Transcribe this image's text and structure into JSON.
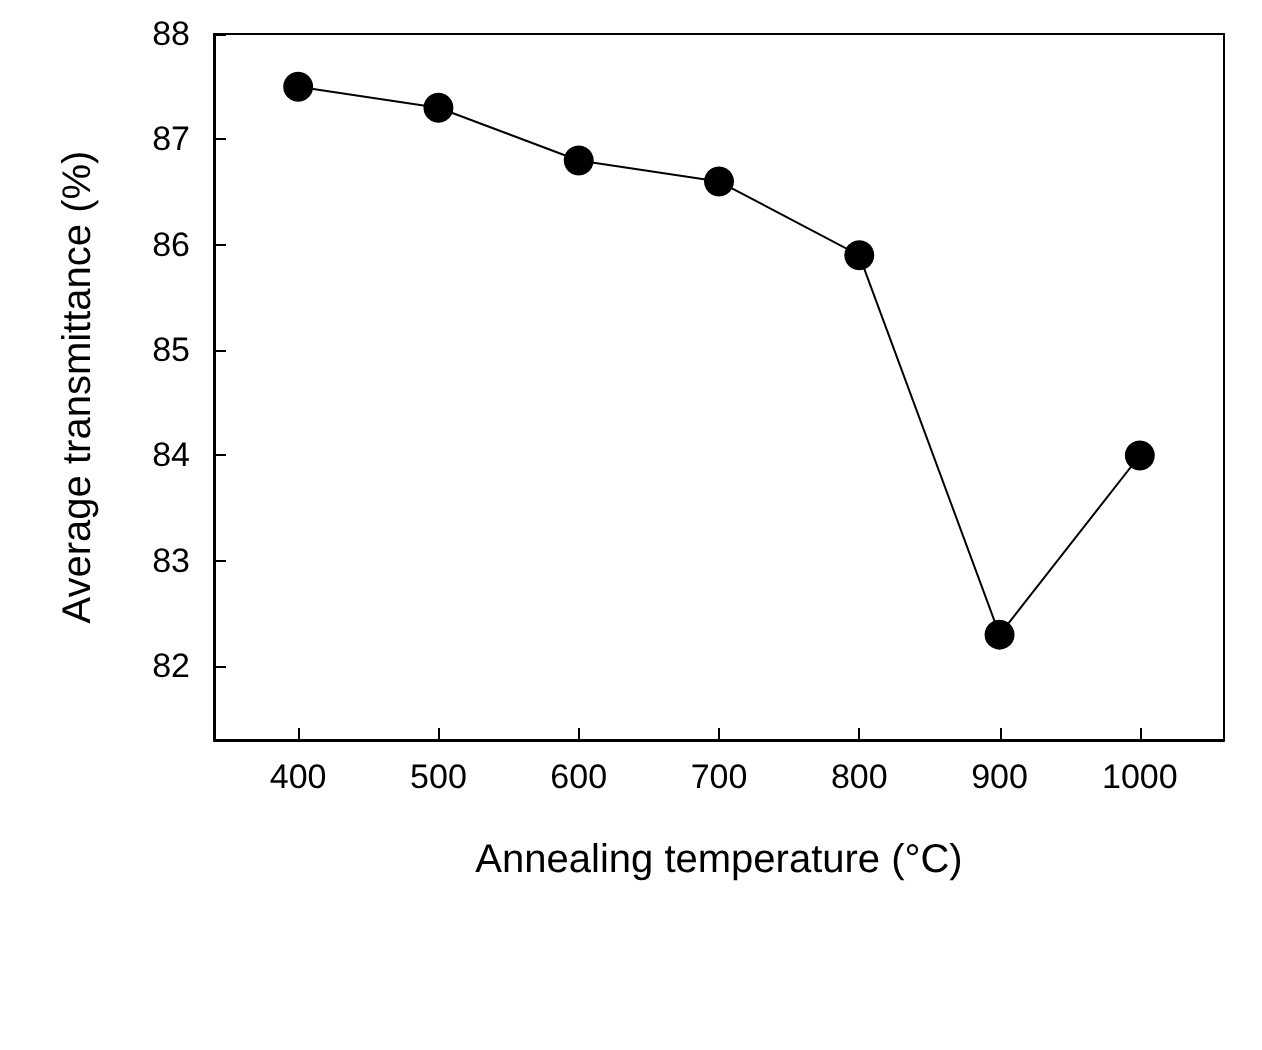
{
  "chart_data": {
    "type": "line",
    "xlabel": "Annealing temperature (°C)",
    "ylabel": "Average transmittance (%)",
    "x": [
      400,
      500,
      600,
      700,
      800,
      900,
      1000
    ],
    "series": [
      {
        "color": "#000000",
        "values": [
          87.5,
          87.3,
          86.8,
          86.6,
          85.9,
          82.3,
          84.0
        ]
      }
    ],
    "xlim": [
      340,
      1060
    ],
    "xticks": [
      400,
      500,
      600,
      700,
      800,
      900,
      1000
    ],
    "ylim": [
      81.3,
      88
    ],
    "yticks": [
      82,
      83,
      84,
      85,
      86,
      87,
      88
    ],
    "grid": false,
    "marker": "circle",
    "line_style": "solid"
  }
}
